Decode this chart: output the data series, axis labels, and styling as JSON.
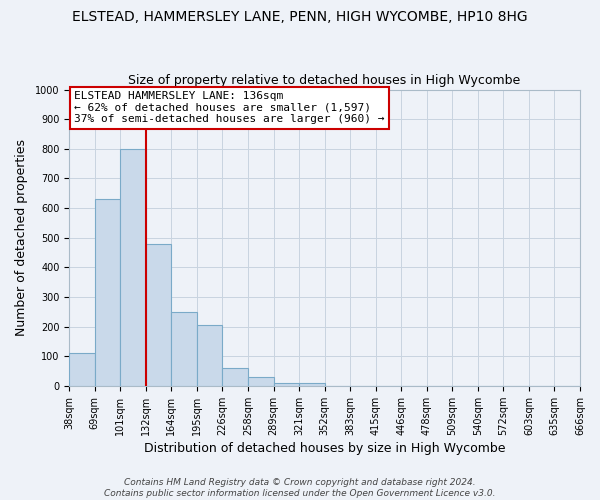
{
  "title": "ELSTEAD, HAMMERSLEY LANE, PENN, HIGH WYCOMBE, HP10 8HG",
  "subtitle": "Size of property relative to detached houses in High Wycombe",
  "xlabel": "Distribution of detached houses by size in High Wycombe",
  "ylabel": "Number of detached properties",
  "bar_values": [
    110,
    630,
    800,
    480,
    250,
    205,
    60,
    30,
    10,
    10,
    0,
    0,
    0,
    0,
    0,
    0,
    0,
    0,
    0,
    0
  ],
  "bin_labels": [
    "38sqm",
    "69sqm",
    "101sqm",
    "132sqm",
    "164sqm",
    "195sqm",
    "226sqm",
    "258sqm",
    "289sqm",
    "321sqm",
    "352sqm",
    "383sqm",
    "415sqm",
    "446sqm",
    "478sqm",
    "509sqm",
    "540sqm",
    "572sqm",
    "603sqm",
    "635sqm",
    "666sqm"
  ],
  "bar_color": "#c9d9ea",
  "bar_edge_color": "#7aaac8",
  "grid_color": "#c8d4e0",
  "background_color": "#eef2f8",
  "plot_bg_color": "#eef2f8",
  "vline_color": "#cc0000",
  "vline_x_index": 3,
  "annotation_line1": "ELSTEAD HAMMERSLEY LANE: 136sqm",
  "annotation_line2": "← 62% of detached houses are smaller (1,597)",
  "annotation_line3": "37% of semi-detached houses are larger (960) →",
  "annotation_box_edge_color": "#cc0000",
  "annotation_box_fill": "#ffffff",
  "ylim": [
    0,
    1000
  ],
  "yticks": [
    0,
    100,
    200,
    300,
    400,
    500,
    600,
    700,
    800,
    900,
    1000
  ],
  "footnote_line1": "Contains HM Land Registry data © Crown copyright and database right 2024.",
  "footnote_line2": "Contains public sector information licensed under the Open Government Licence v3.0.",
  "title_fontsize": 10,
  "subtitle_fontsize": 9,
  "axis_label_fontsize": 9,
  "tick_fontsize": 7,
  "annotation_fontsize": 8,
  "footnote_fontsize": 6.5
}
